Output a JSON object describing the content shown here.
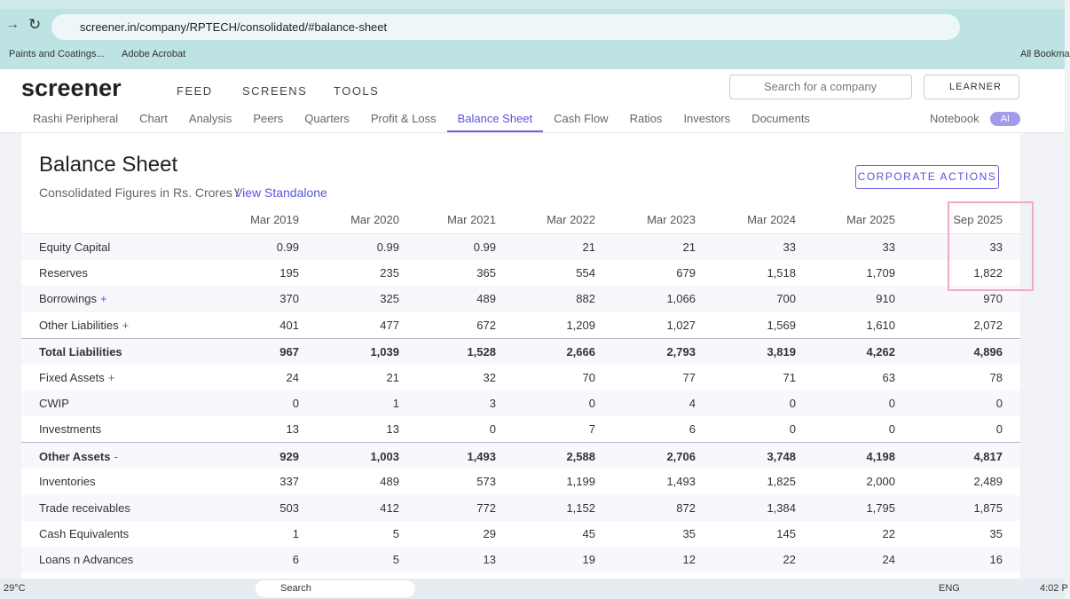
{
  "browser": {
    "url": "screener.in/company/RPTECH/consolidated/#balance-sheet",
    "bookmarks": [
      "Paints and Coatings...",
      "Adobe Acrobat"
    ],
    "all_bookmarks": "All Bookma"
  },
  "nav": {
    "logo": "screener",
    "links": [
      "FEED",
      "SCREENS",
      "TOOLS"
    ],
    "search_placeholder": "Search for a company",
    "user": "LEARNER"
  },
  "tabs": {
    "items": [
      "Rashi Peripheral",
      "Chart",
      "Analysis",
      "Peers",
      "Quarters",
      "Profit & Loss",
      "Balance Sheet",
      "Cash Flow",
      "Ratios",
      "Investors",
      "Documents"
    ],
    "active": 6,
    "notebook": "Notebook",
    "ai": "AI"
  },
  "balance_sheet": {
    "title": "Balance Sheet",
    "subtitle": "Consolidated Figures in Rs. Crores /",
    "standalone_link": "View Standalone",
    "button": "CORPORATE ACTIONS",
    "columns": [
      "Mar 2019",
      "Mar 2020",
      "Mar 2021",
      "Mar 2022",
      "Mar 2023",
      "Mar 2024",
      "Mar 2025",
      "Sep 2025"
    ],
    "rows": [
      {
        "label": "Equity Capital",
        "values": [
          "0.99",
          "0.99",
          "0.99",
          "21",
          "21",
          "33",
          "33",
          "33"
        ]
      },
      {
        "label": "Reserves",
        "values": [
          "195",
          "235",
          "365",
          "554",
          "679",
          "1,518",
          "1,709",
          "1,822"
        ]
      },
      {
        "label": "Borrowings",
        "toggle": "+",
        "values": [
          "370",
          "325",
          "489",
          "882",
          "1,066",
          "700",
          "910",
          "970"
        ]
      },
      {
        "label": "Other Liabilities",
        "toggle": "+",
        "values": [
          "401",
          "477",
          "672",
          "1,209",
          "1,027",
          "1,569",
          "1,610",
          "2,072"
        ]
      },
      {
        "label": "Total Liabilities",
        "bold": true,
        "values": [
          "967",
          "1,039",
          "1,528",
          "2,666",
          "2,793",
          "3,819",
          "4,262",
          "4,896"
        ]
      },
      {
        "label": "Fixed Assets",
        "toggle": "+",
        "values": [
          "24",
          "21",
          "32",
          "70",
          "77",
          "71",
          "63",
          "78"
        ]
      },
      {
        "label": "CWIP",
        "values": [
          "0",
          "1",
          "3",
          "0",
          "4",
          "0",
          "0",
          "0"
        ]
      },
      {
        "label": "Investments",
        "values": [
          "13",
          "13",
          "0",
          "7",
          "6",
          "0",
          "0",
          "0"
        ]
      },
      {
        "label": "Other Assets",
        "toggle": "-",
        "bold": true,
        "values": [
          "929",
          "1,003",
          "1,493",
          "2,588",
          "2,706",
          "3,748",
          "4,198",
          "4,817"
        ]
      },
      {
        "label": "Inventories",
        "values": [
          "337",
          "489",
          "573",
          "1,199",
          "1,493",
          "1,825",
          "2,000",
          "2,489"
        ]
      },
      {
        "label": "Trade receivables",
        "values": [
          "503",
          "412",
          "772",
          "1,152",
          "872",
          "1,384",
          "1,795",
          "1,875"
        ]
      },
      {
        "label": "Cash Equivalents",
        "values": [
          "1",
          "5",
          "29",
          "45",
          "35",
          "145",
          "22",
          "35"
        ]
      },
      {
        "label": "Loans n Advances",
        "values": [
          "6",
          "5",
          "13",
          "19",
          "12",
          "22",
          "24",
          "16"
        ]
      }
    ]
  },
  "taskbar": {
    "weather": "29°C",
    "search": "Search",
    "language": "ENG",
    "time": "4:02 P"
  }
}
